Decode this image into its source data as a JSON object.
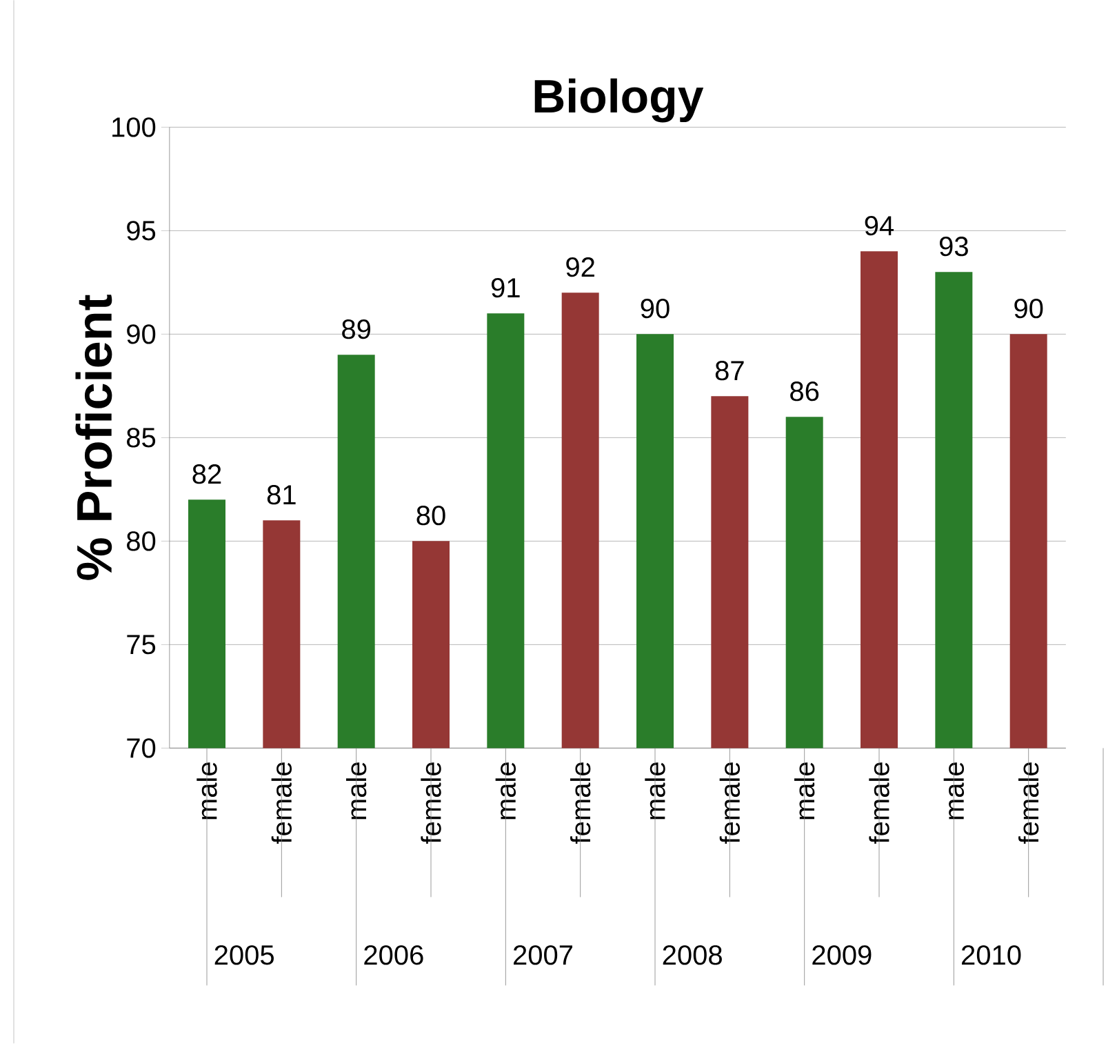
{
  "chart_data": {
    "type": "bar",
    "title": "Biology",
    "ylabel": "% Proficient",
    "categories": [
      "male",
      "female",
      "male",
      "female",
      "male",
      "female",
      "male",
      "female",
      "male",
      "female",
      "male",
      "female"
    ],
    "values": [
      82,
      81,
      89,
      80,
      91,
      92,
      90,
      87,
      86,
      94,
      93,
      90
    ],
    "colors": [
      "#2a7d2a",
      "#953735",
      "#2a7d2a",
      "#953735",
      "#2a7d2a",
      "#953735",
      "#2a7d2a",
      "#953735",
      "#2a7d2a",
      "#953735",
      "#2a7d2a",
      "#953735"
    ],
    "annotations": [
      "2005",
      "2006",
      "2007",
      "2008",
      "2009",
      "2010"
    ],
    "ylim": [
      70,
      100
    ],
    "yticks": [
      70,
      75,
      80,
      85,
      90,
      95,
      100
    ],
    "grid": "y",
    "data_labels": true
  }
}
